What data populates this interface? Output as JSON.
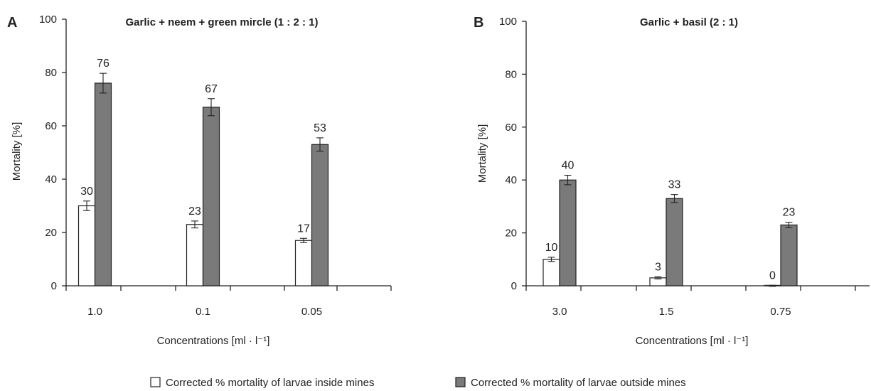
{
  "chart_data": [
    {
      "type": "bar",
      "panel": "A",
      "title": "Garlic + neem + green mircle (1 : 2 : 1)",
      "xlabel": "Concentrations [ml · l⁻¹]",
      "ylabel": "Mortality [%]",
      "ylim": [
        0,
        100
      ],
      "yticks": [
        0,
        20,
        40,
        60,
        80,
        100
      ],
      "categories": [
        "1.0",
        "0.1",
        "0.05"
      ],
      "series": [
        {
          "name": "Corrected % mortality of larvae inside mines",
          "values": [
            30,
            23,
            17
          ],
          "labels": [
            "30",
            "23",
            "17"
          ],
          "errors": [
            1.8,
            1.3,
            0.8
          ],
          "color": "#ffffff"
        },
        {
          "name": "Corrected % mortality of larvae outside mines",
          "values": [
            76,
            67,
            53
          ],
          "labels": [
            "76",
            "67",
            "53"
          ],
          "errors": [
            3.7,
            3.2,
            2.5
          ],
          "color": "#7a7a7a"
        }
      ]
    },
    {
      "type": "bar",
      "panel": "B",
      "title": "Garlic + basil (2 : 1)",
      "xlabel": "Concentrations [ml · l⁻¹]",
      "ylabel": "Mortality [%]",
      "ylim": [
        0,
        100
      ],
      "yticks": [
        0,
        20,
        40,
        60,
        80,
        100
      ],
      "categories": [
        "3.0",
        "1.5",
        "0.75"
      ],
      "series": [
        {
          "name": "Corrected % mortality of larvae inside mines",
          "values": [
            10,
            3,
            0
          ],
          "labels": [
            "10",
            "3",
            "0"
          ],
          "errors": [
            0.8,
            0.4,
            0.2
          ],
          "color": "#ffffff"
        },
        {
          "name": "Corrected % mortality of larvae outside mines",
          "values": [
            40,
            33,
            23
          ],
          "labels": [
            "40",
            "33",
            "23"
          ],
          "errors": [
            1.8,
            1.5,
            1.0
          ],
          "color": "#7a7a7a"
        }
      ]
    }
  ],
  "legend": {
    "placement": "bottom-center",
    "items": [
      {
        "label": "Corrected % mortality of larvae inside mines",
        "color": "#ffffff"
      },
      {
        "label": "Corrected % mortality of larvae outside mines",
        "color": "#7a7a7a"
      }
    ]
  }
}
